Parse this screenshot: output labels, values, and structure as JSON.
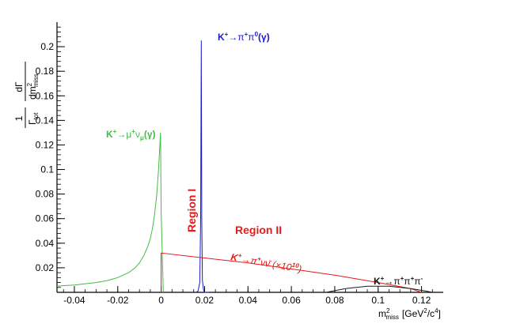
{
  "chart_data": {
    "type": "line",
    "title": "",
    "xlabel": {
      "main": "m",
      "sup": "2",
      "sub": "miss",
      "unit": "[GeV",
      "unit_sup1": "2",
      "unit_mid": "/c",
      "unit_sup2": "4",
      "unit_end": "]"
    },
    "ylabel": {
      "num_left": "1",
      "den_left": "Γ",
      "den_left_sub": "tot",
      "num_right": "dΓ",
      "den_right": "dm",
      "den_right_sup": "2",
      "den_right_sub": "miss"
    },
    "xlim": [
      -0.048,
      0.13
    ],
    "ylim": [
      0,
      0.22
    ],
    "x_ticks": [
      "-0.04",
      "-0.02",
      "0",
      "0.02",
      "0.04",
      "0.06",
      "0.08",
      "0.1",
      "0.12"
    ],
    "x_tick_values": [
      -0.04,
      -0.02,
      0,
      0.02,
      0.04,
      0.06,
      0.08,
      0.1,
      0.12
    ],
    "y_ticks": [
      "0.02",
      "0.04",
      "0.06",
      "0.08",
      "0.1",
      "0.12",
      "0.14",
      "0.16",
      "0.18",
      "0.2"
    ],
    "y_tick_values": [
      0.02,
      0.04,
      0.06,
      0.08,
      0.1,
      0.12,
      0.14,
      0.16,
      0.18,
      0.2
    ],
    "grid": false,
    "series": [
      {
        "name": "K⁺→μ⁺ν_μ(γ)",
        "color": "#44bb44",
        "x": [
          -0.048,
          -0.044,
          -0.04,
          -0.035,
          -0.03,
          -0.025,
          -0.02,
          -0.015,
          -0.012,
          -0.01,
          -0.008,
          -0.006,
          -0.005,
          -0.004,
          -0.003,
          -0.002,
          -0.0012,
          -0.0006,
          -0.0003,
          0.0,
          0.001
        ],
        "y": [
          0.005,
          0.0055,
          0.006,
          0.007,
          0.008,
          0.0095,
          0.012,
          0.016,
          0.02,
          0.024,
          0.03,
          0.038,
          0.044,
          0.052,
          0.064,
          0.08,
          0.1,
          0.12,
          0.13,
          0.065,
          0.0
        ]
      },
      {
        "name": "K⁺→π⁺π⁰(γ)",
        "color": "#1a1acc",
        "x": [
          0.016,
          0.017,
          0.0178,
          0.0182,
          0.0185,
          0.0187,
          0.019,
          0.0195,
          0.02,
          0.022
        ],
        "y": [
          0.0,
          0.001,
          0.008,
          0.06,
          0.205,
          0.06,
          0.01,
          0.002,
          0.0,
          0.0
        ]
      },
      {
        "name": "K⁺→π⁺νν̄ (×10¹⁰)",
        "color": "#e51a1a",
        "x": [
          0.0,
          0.0,
          0.04,
          0.08,
          0.1,
          0.115,
          0.12
        ],
        "y": [
          0.0,
          0.032,
          0.024,
          0.014,
          0.008,
          0.003,
          0.0
        ]
      },
      {
        "name": "K⁺→π⁺π⁺π⁻",
        "color": "#1a1a1a",
        "x": [
          0.076,
          0.085,
          0.095,
          0.105,
          0.115,
          0.122,
          0.125
        ],
        "y": [
          0.0,
          0.003,
          0.005,
          0.005,
          0.003,
          0.001,
          0.0
        ]
      }
    ],
    "labels": {
      "mu": {
        "base": "K",
        "sup1": "+",
        "arrow": "→μ",
        "sup2": "+",
        "nu": "ν",
        "nu_sub": "μ",
        "end": "(γ)",
        "color": "#44bb44"
      },
      "pi0": {
        "base": "K",
        "sup1": "+",
        "arrow": "→π",
        "sup2": "+",
        "pi2": "π",
        "sup3": "0",
        "end": "(γ)",
        "color": "#1a1acc"
      },
      "nunu": {
        "base": "K",
        "sup1": "+",
        "arrow": "→π",
        "sup2": "+",
        "nu": "νν̄",
        "factor_open": " (×10",
        "factor_sup": "10",
        "factor_close": ")",
        "color": "#e51a1a"
      },
      "threepi": {
        "base": "K",
        "sup1": "+",
        "arrow": "→π",
        "sup2": "+",
        "pi2": "π",
        "sup3": "+",
        "pi3": "π",
        "sup4": "-",
        "color": "#111111"
      }
    },
    "annotations": {
      "region1": {
        "text": "Region I",
        "color": "#e51a1a"
      },
      "region2": {
        "text": "Region II",
        "color": "#e51a1a"
      }
    }
  }
}
